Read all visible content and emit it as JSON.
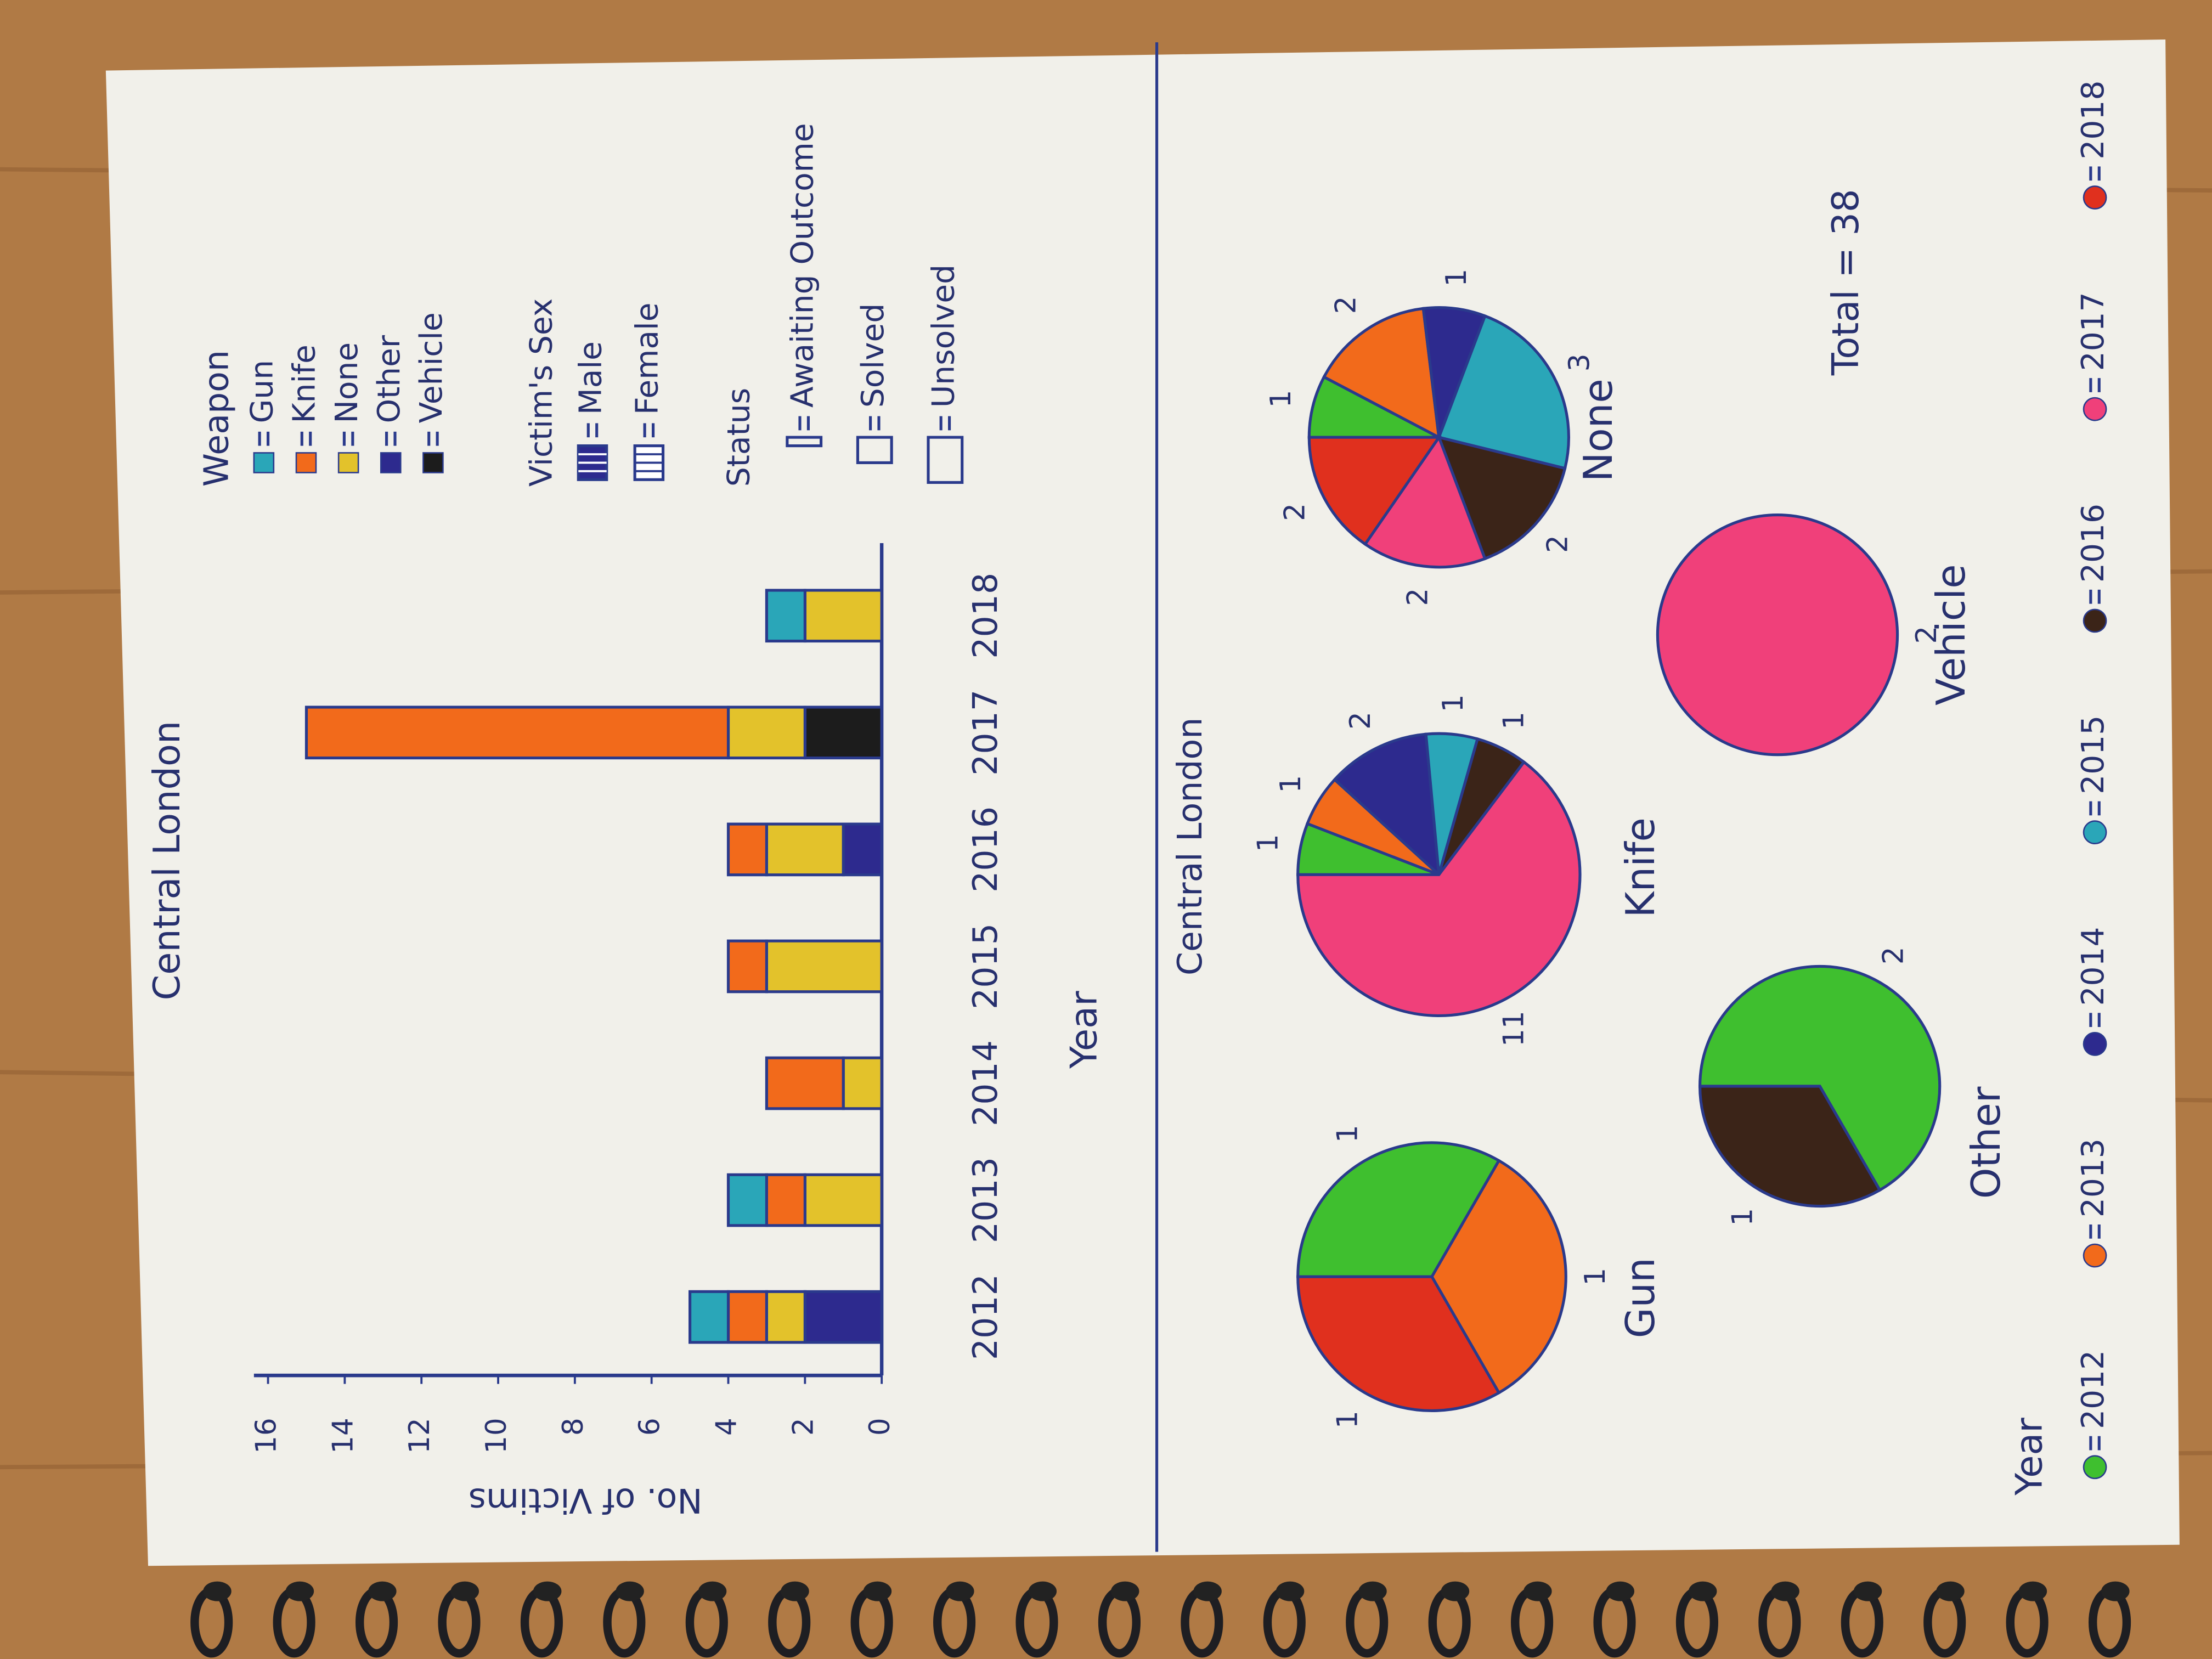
{
  "chart_data": [
    {
      "type": "bar",
      "title": "Central London",
      "x_label": "Year",
      "y_label": "No. of Victims",
      "categories": [
        "2012",
        "2013",
        "2014",
        "2015",
        "2016",
        "2017",
        "2018"
      ],
      "series": [
        {
          "name": "Gun",
          "color": "#2aa6b8",
          "values": [
            1,
            1,
            null,
            null,
            null,
            null,
            1
          ]
        },
        {
          "name": "Knife",
          "color": "#f26a1b",
          "values": [
            1,
            1,
            2,
            1,
            1,
            11,
            null
          ]
        },
        {
          "name": "None",
          "color": "#e3c22b",
          "values": [
            1,
            2,
            1,
            3,
            2,
            2,
            2
          ]
        },
        {
          "name": "Other",
          "color": "#2d2a8e",
          "values": [
            2,
            null,
            null,
            null,
            1,
            null,
            null
          ]
        },
        {
          "name": "Vehicle",
          "color": "#1c1c1c",
          "values": [
            null,
            null,
            null,
            null,
            null,
            2,
            null
          ]
        }
      ],
      "legend_title": "Weapon",
      "sex_legend": {
        "title": "Victim's Sex",
        "items": [
          "Male",
          "Female"
        ]
      },
      "status_legend": {
        "title": "Status",
        "items": [
          "Awaiting Outcome",
          "Solved",
          "Unsolved"
        ]
      },
      "ylim": [
        0,
        16
      ],
      "yticks": [
        0,
        2,
        4,
        6,
        8,
        10,
        12,
        14,
        16
      ],
      "grid": false
    },
    {
      "type": "pie",
      "title": "Central London",
      "legend_title": "Year",
      "categories": [
        "2012",
        "2013",
        "2014",
        "2015",
        "2016",
        "2017",
        "2018"
      ],
      "colors": [
        "#3fbf2f",
        "#f26a1b",
        "#2d2a8e",
        "#2aa6b8",
        "#3b2418",
        "#f0407a",
        "#e0301e"
      ],
      "pies": [
        {
          "name": "Gun",
          "values": [
            1,
            1,
            null,
            null,
            null,
            null,
            1
          ]
        },
        {
          "name": "Other",
          "values": [
            2,
            null,
            null,
            null,
            1,
            null,
            null
          ]
        },
        {
          "name": "Knife",
          "values": [
            1,
            1,
            2,
            1,
            1,
            11,
            null
          ]
        },
        {
          "name": "Vehicle",
          "values": [
            null,
            null,
            null,
            null,
            null,
            2,
            null
          ]
        },
        {
          "name": "None",
          "values": [
            1,
            2,
            1,
            3,
            2,
            2,
            2
          ]
        }
      ],
      "total": {
        "value": 38,
        "label": "Total = 38"
      }
    }
  ]
}
